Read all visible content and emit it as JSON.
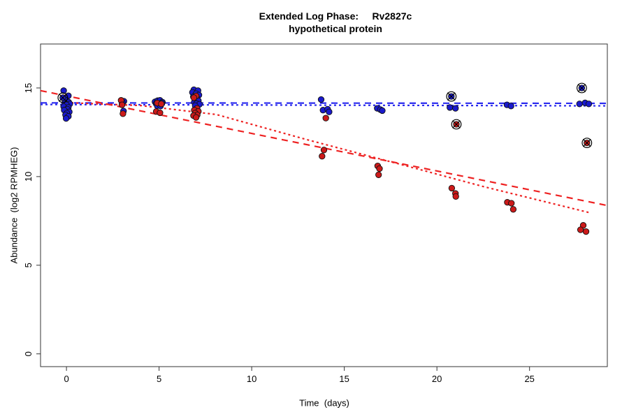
{
  "colors": {
    "blue_point": "#1a1acc",
    "red_point": "#cc1a1a",
    "blue_line": "#2a2aee",
    "red_line": "#ee2222",
    "axis": "#333333",
    "point_outline": "#111111",
    "flag_marker": "#000000"
  },
  "chart_data": {
    "type": "scatter",
    "title_line1": "Extended Log Phase:     Rv2827c",
    "title_line2": "hypothetical protein",
    "xlabel": "Time  (days)",
    "ylabel": "Abundance  (log2 RPMHEG)",
    "xlim": [
      -1.4,
      29.2
    ],
    "ylim": [
      -0.72,
      17.48
    ],
    "x_ticks": [
      0,
      5,
      10,
      15,
      20,
      25
    ],
    "y_ticks": [
      0,
      5,
      10,
      15
    ],
    "grid": false,
    "legend": "none",
    "series": [
      {
        "name": "blue-condition",
        "color_key": "blue_point",
        "points": [
          [
            -0.15,
            14.85
          ],
          [
            0.1,
            14.56
          ],
          [
            0,
            14.3
          ],
          [
            0.12,
            14.2
          ],
          [
            -0.1,
            14.15
          ],
          [
            0.18,
            14.1
          ],
          [
            0,
            14.05
          ],
          [
            -0.15,
            13.95
          ],
          [
            0.1,
            13.9
          ],
          [
            0.05,
            13.8
          ],
          [
            -0.12,
            13.75
          ],
          [
            0.15,
            13.65
          ],
          [
            0.02,
            13.58
          ],
          [
            -0.05,
            13.48
          ],
          [
            0.1,
            13.4
          ],
          [
            -0.02,
            13.28
          ],
          [
            3.1,
            14.25
          ],
          [
            3.02,
            14.18
          ],
          [
            3.08,
            13.7
          ],
          [
            4.78,
            14.22
          ],
          [
            4.92,
            14.28
          ],
          [
            5.05,
            14.3
          ],
          [
            5.18,
            14.2
          ],
          [
            4.85,
            14.12
          ],
          [
            5,
            14.08
          ],
          [
            5.15,
            14.15
          ],
          [
            4.9,
            14
          ],
          [
            5.08,
            13.98
          ],
          [
            6.88,
            14.9
          ],
          [
            7.1,
            14.85
          ],
          [
            6.8,
            14.75
          ],
          [
            7,
            14.68
          ],
          [
            7.15,
            14.6
          ],
          [
            6.85,
            14.5
          ],
          [
            7.05,
            14.42
          ],
          [
            6.95,
            14.35
          ],
          [
            7.12,
            14.28
          ],
          [
            6.9,
            14.2
          ],
          [
            7.02,
            14.12
          ],
          [
            7.18,
            14.08
          ],
          [
            6.95,
            14
          ],
          [
            13.75,
            14.35
          ],
          [
            13.85,
            13.75
          ],
          [
            14.1,
            13.8
          ],
          [
            14.18,
            13.65
          ],
          [
            16.78,
            13.85
          ],
          [
            16.95,
            13.78
          ],
          [
            17.05,
            13.72
          ],
          [
            20.7,
            13.9
          ],
          [
            21,
            13.85
          ],
          [
            23.78,
            14.05
          ],
          [
            24,
            13.98
          ],
          [
            27.7,
            14.1
          ],
          [
            28,
            14.16
          ],
          [
            28.2,
            14.1
          ]
        ],
        "flagged_points": [
          [
            -0.2,
            14.45
          ],
          [
            20.78,
            14.52
          ],
          [
            27.82,
            15.0
          ]
        ]
      },
      {
        "name": "red-condition",
        "color_key": "red_point",
        "points": [
          [
            2.95,
            14.3
          ],
          [
            3,
            14.05
          ],
          [
            3.05,
            13.55
          ],
          [
            4.9,
            14.15
          ],
          [
            5.12,
            14.1
          ],
          [
            4.85,
            13.67
          ],
          [
            5.05,
            13.6
          ],
          [
            7,
            14.55
          ],
          [
            6.88,
            14.45
          ],
          [
            7.05,
            13.85
          ],
          [
            6.9,
            13.75
          ],
          [
            7.12,
            13.68
          ],
          [
            6.95,
            13.58
          ],
          [
            7.06,
            13.48
          ],
          [
            6.86,
            13.44
          ],
          [
            7,
            13.34
          ],
          [
            14,
            13.3
          ],
          [
            13.9,
            11.5
          ],
          [
            13.8,
            11.15
          ],
          [
            16.8,
            10.6
          ],
          [
            16.9,
            10.45
          ],
          [
            16.85,
            10.1
          ],
          [
            20.8,
            9.35
          ],
          [
            21,
            9.05
          ],
          [
            21.02,
            8.88
          ],
          [
            23.8,
            8.55
          ],
          [
            24.02,
            8.5
          ],
          [
            24.12,
            8.15
          ],
          [
            27.9,
            7.25
          ],
          [
            27.75,
            7.0
          ],
          [
            28.05,
            6.9
          ]
        ],
        "flagged_points": [
          [
            21.05,
            12.95
          ],
          [
            28.1,
            11.9
          ]
        ]
      }
    ],
    "fit_lines": [
      {
        "name": "blue-dashed-fit",
        "color_key": "blue_line",
        "style": "dashed",
        "points": [
          [
            -1.4,
            14.16
          ],
          [
            29.2,
            14.13
          ]
        ]
      },
      {
        "name": "blue-dotted-fit",
        "color_key": "blue_line",
        "style": "dotted",
        "points": [
          [
            -1.4,
            14.07
          ],
          [
            29.2,
            13.99
          ]
        ]
      },
      {
        "name": "red-dashed-fit",
        "color_key": "red_line",
        "style": "dashed",
        "points": [
          [
            -1.4,
            14.85
          ],
          [
            29.2,
            8.37
          ]
        ]
      },
      {
        "name": "red-dotted-fit",
        "color_key": "red_line",
        "style": "dotted",
        "points": [
          [
            0,
            14.17
          ],
          [
            4,
            14.01
          ],
          [
            8.1,
            13.5
          ],
          [
            13,
            12.08
          ],
          [
            18,
            10.7
          ],
          [
            22.5,
            9.44
          ],
          [
            28.3,
            7.95
          ]
        ]
      }
    ]
  }
}
